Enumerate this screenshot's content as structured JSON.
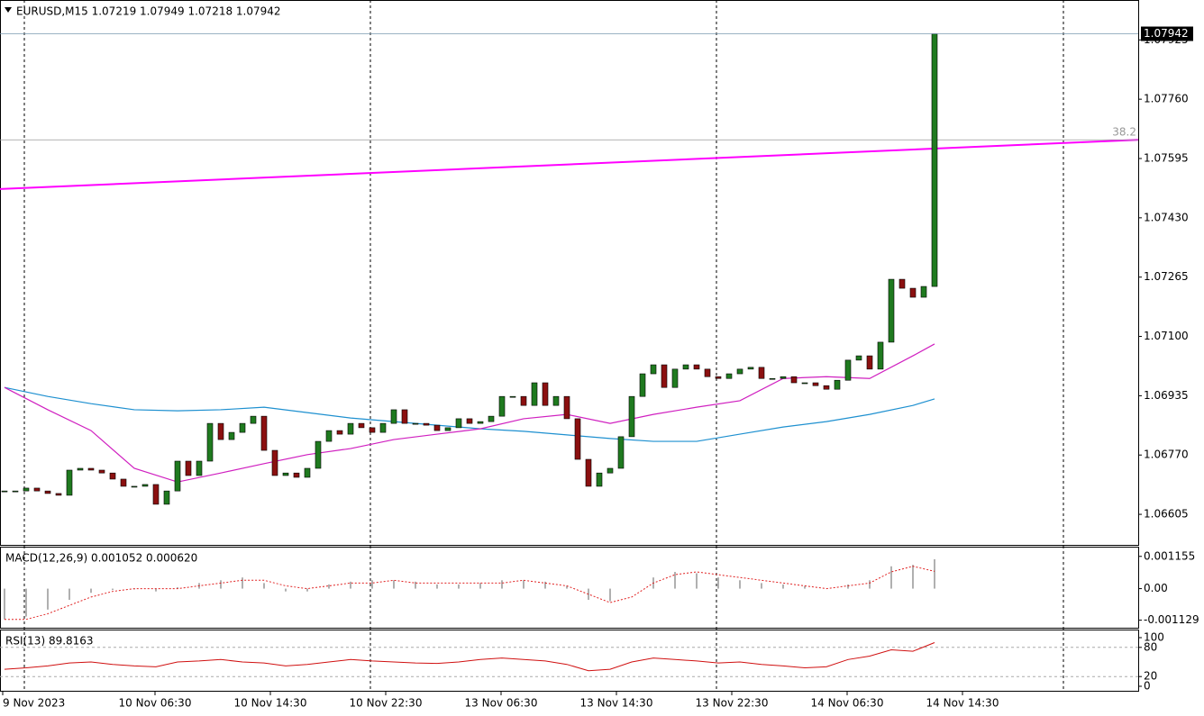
{
  "chart_data": [
    {
      "type": "candlestick",
      "title": "EURUSD,M15  1.07219 1.07949 1.07218 1.07942",
      "values": [
        1.0667,
        1.0667,
        1.06678,
        1.0667,
        1.06663,
        1.06658,
        1.06728,
        1.06733,
        1.06728,
        1.0672,
        1.06703,
        1.06683,
        1.06683,
        1.06688,
        1.06633,
        1.0667,
        1.06753,
        1.06713,
        1.06753,
        1.06858,
        1.06813,
        1.06833,
        1.06858,
        1.06878,
        1.06783,
        1.06713,
        1.0672,
        1.06708,
        1.06733,
        1.06808,
        1.06838,
        1.06828,
        1.06858,
        1.06846,
        1.06833,
        1.06858,
        1.06896,
        1.06858,
        1.06858,
        1.06853,
        1.06838,
        1.06846,
        1.06871,
        1.06858,
        1.06863,
        1.06878,
        1.06933,
        1.06933,
        1.06908,
        1.06971,
        1.06908,
        1.06933,
        1.06871,
        1.06758,
        1.06683,
        1.0672,
        1.06733,
        1.06821,
        1.06933,
        1.06996,
        1.07021,
        1.06958,
        1.07009,
        1.07021,
        1.07009,
        1.06988,
        1.06983,
        1.06996,
        1.07009,
        1.07014,
        1.06983,
        1.06983,
        1.06988,
        1.06971,
        1.06971,
        1.06963,
        1.06953,
        1.06978,
        1.07034,
        1.07046,
        1.07009,
        1.07084,
        1.07259,
        1.07234,
        1.07209,
        1.07239,
        1.07942
      ],
      "up_color": "#1f7a1f",
      "down_color": "#8b1010",
      "lines": [
        {
          "color": "#1e90d0",
          "x": [
            0,
            4,
            8,
            12,
            16,
            20,
            24,
            28,
            32,
            36,
            40,
            44,
            48,
            52,
            56,
            60,
            64,
            68,
            72,
            76,
            80,
            84,
            86
          ],
          "values": [
            1.06958,
            1.06933,
            1.06913,
            1.06896,
            1.06893,
            1.06896,
            1.06903,
            1.06888,
            1.06873,
            1.06863,
            1.06853,
            1.06843,
            1.06836,
            1.06826,
            1.06816,
            1.06808,
            1.06808,
            1.06828,
            1.06848,
            1.06863,
            1.06883,
            1.06908,
            1.06926
          ]
        },
        {
          "color": "#d020c0",
          "x": [
            0,
            4,
            8,
            12,
            16,
            20,
            24,
            28,
            32,
            36,
            40,
            44,
            48,
            52,
            56,
            60,
            64,
            68,
            72,
            76,
            80,
            84,
            86
          ],
          "values": [
            1.06958,
            1.06896,
            1.06838,
            1.06733,
            1.06695,
            1.0672,
            1.06746,
            1.06771,
            1.06788,
            1.06813,
            1.06828,
            1.06843,
            1.06871,
            1.06883,
            1.06858,
            1.06883,
            1.06903,
            1.06921,
            1.06983,
            1.06988,
            1.06983,
            1.07046,
            1.07079
          ]
        }
      ],
      "trendline": {
        "color": "#ff00ff",
        "values": [
          1.0751,
          1.07647
        ]
      },
      "fib": {
        "label": "38.2",
        "value": 1.07647
      },
      "ylim": [
        1.0652,
        1.08036
      ],
      "yticks": [
        1.07925,
        {
          "value": 1.0776,
          "label": "1.07760"
        },
        1.07595,
        {
          "value": 1.0743,
          "label": "1.07430"
        },
        1.07265,
        {
          "value": 1.071,
          "label": "1.07100"
        },
        1.06935,
        {
          "value": 1.0677,
          "label": "1.06770"
        },
        1.06605
      ],
      "xtick_labels": [
        "9 Nov 2023",
        "10 Nov 06:30",
        "10 Nov 14:30",
        "10 Nov 22:30",
        "13 Nov 06:30",
        "13 Nov 14:30",
        "13 Nov 22:30",
        "14 Nov 06:30",
        "14 Nov 14:30"
      ]
    },
    {
      "type": "macd",
      "title": "MACD(12,26,9) 0.001052 0.000620",
      "values": [
        -0.0011,
        -0.001,
        -0.00075,
        -0.0004,
        -0.00015,
        -5e-05,
        -3e-05,
        -0.0001,
        5e-05,
        0.0002,
        0.0003,
        0.0004,
        0.0002,
        -0.0001,
        -0.0001,
        0.00015,
        0.00025,
        0.0003,
        0.0003,
        0.00025,
        0.00015,
        0.00015,
        0.0002,
        0.0003,
        0.0003,
        0.00025,
        0.0001,
        -0.0004,
        -0.00045,
        0,
        0.0004,
        0.0006,
        0.00055,
        0.0004,
        0.0003,
        0.0002,
        0.00015,
        0.0001,
        0,
        0.00015,
        0.0003,
        0.0008,
        0.00085,
        0.001052
      ],
      "signal": [
        -0.0011,
        -0.0011,
        -0.0009,
        -0.0006,
        -0.0003,
        -0.0001,
        0,
        0,
        0,
        0.0001,
        0.0002,
        0.0003,
        0.0003,
        0.0001,
        0,
        0.0001,
        0.0002,
        0.0002,
        0.0003,
        0.0002,
        0.0002,
        0.0002,
        0.0002,
        0.0002,
        0.0003,
        0.0002,
        0.0001,
        -0.0002,
        -0.0005,
        -0.0003,
        0.0002,
        0.0005,
        0.0006,
        0.0005,
        0.0004,
        0.0003,
        0.0002,
        0.0001,
        0,
        0.0001,
        0.0002,
        0.0006,
        0.0008,
        0.00062
      ],
      "color": "#b0b0b0",
      "signal_color": "#e02020",
      "ylim": [
        -0.0014,
        0.00147
      ],
      "yticks": [
        0.001155,
        {
          "value": 0,
          "label": "0.00"
        },
        -0.001129
      ]
    },
    {
      "type": "rsi",
      "title": "RSI(13) 89.8163",
      "values": [
        35,
        38,
        42,
        48,
        50,
        45,
        42,
        40,
        50,
        52,
        55,
        50,
        48,
        42,
        45,
        50,
        55,
        52,
        50,
        48,
        47,
        50,
        55,
        58,
        55,
        52,
        45,
        32,
        35,
        50,
        58,
        55,
        52,
        48,
        50,
        45,
        42,
        38,
        40,
        55,
        62,
        75,
        72,
        89.8163
      ],
      "color": "#d01010",
      "levels": [
        80,
        20
      ],
      "ylim": [
        0,
        100
      ],
      "yticks": [
        100,
        80,
        20,
        0
      ]
    }
  ]
}
